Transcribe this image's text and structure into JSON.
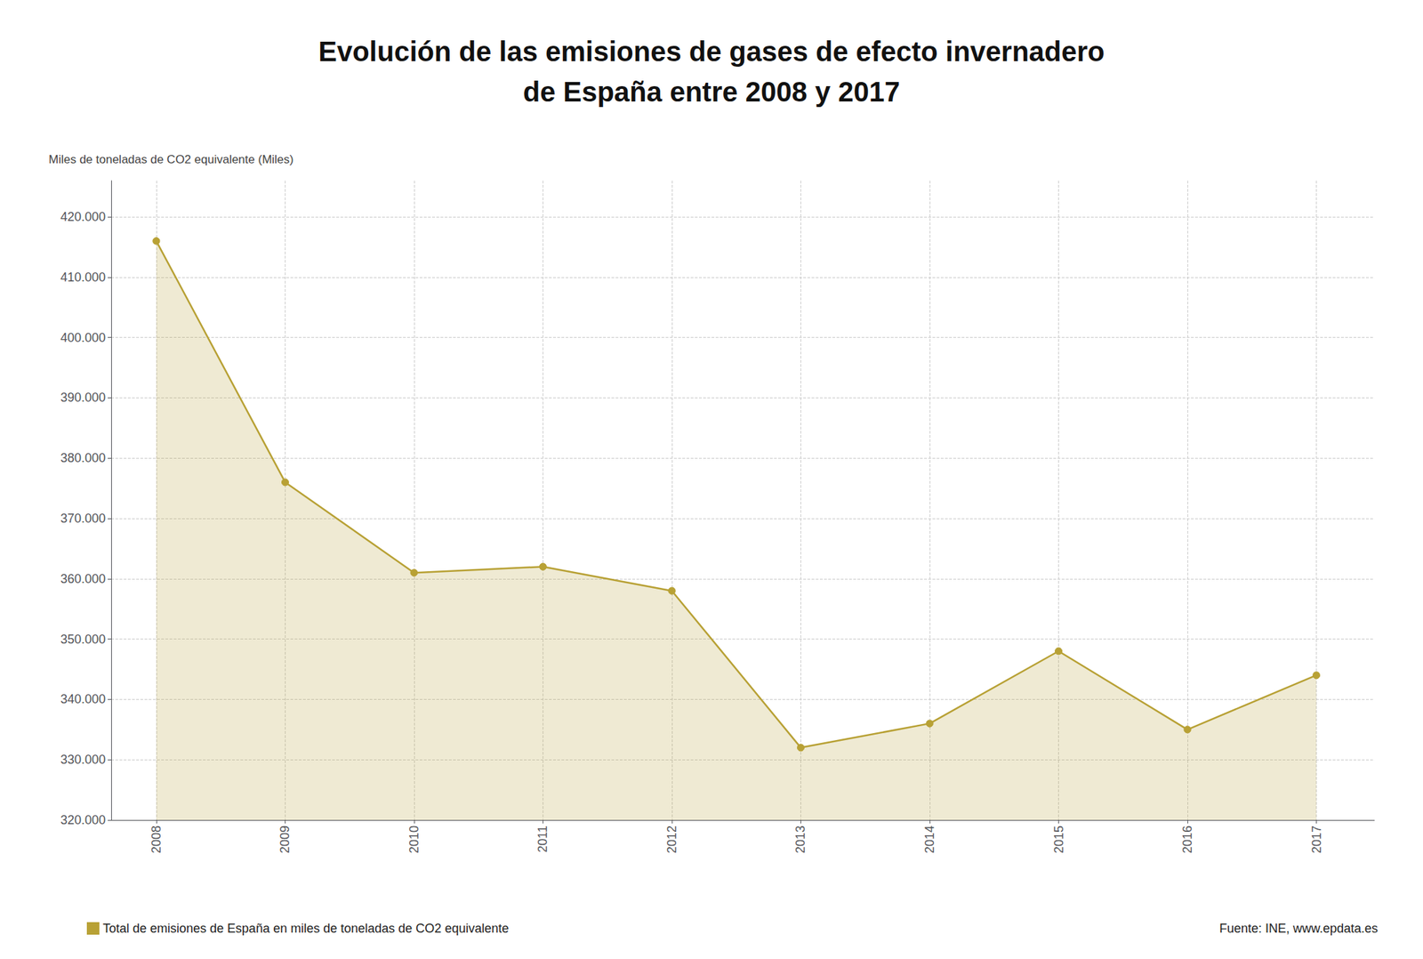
{
  "chart_data": {
    "type": "area",
    "title": "Evolución de las emisiones de gases de efecto invernadero\nde España entre 2008 y 2017",
    "ylabel": "Miles de toneladas de CO2 equivalente (Miles)",
    "annotations": [
      "Fuente: INE, www.epdata.es"
    ],
    "x": [
      2008,
      2009,
      2010,
      2011,
      2012,
      2013,
      2014,
      2015,
      2016,
      2017
    ],
    "series": [
      {
        "name": "Total de emisiones de España en miles de toneladas de CO2 equivalente",
        "color": "#b8a135",
        "marker": "circle",
        "line_style": "solid",
        "values": [
          416000,
          376000,
          361000,
          362000,
          358000,
          332000,
          336000,
          348000,
          335000,
          344000
        ]
      }
    ],
    "xlim": [
      2007.65,
      2017.45
    ],
    "xticks": [
      2008,
      2009,
      2010,
      2011,
      2012,
      2013,
      2014,
      2015,
      2016,
      2017
    ],
    "ylim": [
      320000,
      426000
    ],
    "yticks": [
      {
        "value": 320000,
        "label": "320.000"
      },
      {
        "value": 330000,
        "label": "330.000"
      },
      {
        "value": 340000,
        "label": "340.000"
      },
      {
        "value": 350000,
        "label": "350.000"
      },
      {
        "value": 360000,
        "label": "360.000"
      },
      {
        "value": 370000,
        "label": "370.000"
      },
      {
        "value": 380000,
        "label": "380.000"
      },
      {
        "value": 390000,
        "label": "390.000"
      },
      {
        "value": 400000,
        "label": "400.000"
      },
      {
        "value": 410000,
        "label": "410.000"
      },
      {
        "value": 420000,
        "label": "420.000"
      }
    ],
    "grid": true,
    "legend": "bottom"
  }
}
